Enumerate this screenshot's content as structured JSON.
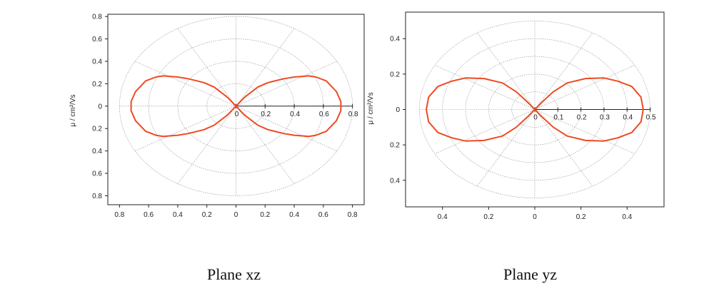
{
  "figure": {
    "caption_left": "Plane xz",
    "caption_right": "Plane yz"
  },
  "colors": {
    "curve": "#ee4a22",
    "grid": "#8c8c8c",
    "axis": "#222222"
  },
  "chart_data": [
    {
      "type": "polar",
      "title": "",
      "caption": "Plane xz",
      "ylabel": "μ / cm²/Vs",
      "series": [
        {
          "points": [
            [
              0.0,
              0.0
            ],
            [
              0.06,
              0.08
            ],
            [
              0.15,
              0.17
            ],
            [
              0.22,
              0.21
            ],
            [
              0.33,
              0.245
            ],
            [
              0.4,
              0.26
            ],
            [
              0.5,
              0.27
            ],
            [
              0.55,
              0.26
            ],
            [
              0.62,
              0.225
            ],
            [
              0.69,
              0.13
            ],
            [
              0.72,
              0.04
            ],
            [
              0.72,
              -0.04
            ],
            [
              0.69,
              -0.13
            ],
            [
              0.62,
              -0.225
            ],
            [
              0.55,
              -0.26
            ],
            [
              0.5,
              -0.27
            ],
            [
              0.4,
              -0.26
            ],
            [
              0.33,
              -0.245
            ],
            [
              0.22,
              -0.21
            ],
            [
              0.15,
              -0.17
            ],
            [
              0.06,
              -0.08
            ],
            [
              0.0,
              0.0
            ],
            [
              -0.06,
              0.08
            ],
            [
              -0.15,
              0.17
            ],
            [
              -0.22,
              0.21
            ],
            [
              -0.33,
              0.245
            ],
            [
              -0.4,
              0.26
            ],
            [
              -0.5,
              0.27
            ],
            [
              -0.55,
              0.26
            ],
            [
              -0.62,
              0.225
            ],
            [
              -0.69,
              0.13
            ],
            [
              -0.72,
              0.04
            ],
            [
              -0.72,
              -0.04
            ],
            [
              -0.69,
              -0.13
            ],
            [
              -0.62,
              -0.225
            ],
            [
              -0.55,
              -0.26
            ],
            [
              -0.5,
              -0.27
            ],
            [
              -0.4,
              -0.26
            ],
            [
              -0.33,
              -0.245
            ],
            [
              -0.22,
              -0.21
            ],
            [
              -0.15,
              -0.17
            ],
            [
              -0.06,
              -0.08
            ],
            [
              0.0,
              0.0
            ]
          ]
        }
      ],
      "xlim": [
        -0.88,
        0.88
      ],
      "ylim": [
        -0.88,
        0.82
      ],
      "x_ticks": [
        {
          "value": -0.8,
          "label": "0.8"
        },
        {
          "value": -0.6,
          "label": "0.6"
        },
        {
          "value": -0.4,
          "label": "0.4"
        },
        {
          "value": -0.2,
          "label": "0.2"
        },
        {
          "value": 0,
          "label": "0"
        },
        {
          "value": 0.2,
          "label": "0.2"
        },
        {
          "value": 0.4,
          "label": "0.4"
        },
        {
          "value": 0.6,
          "label": "0.6"
        },
        {
          "value": 0.8,
          "label": "0.8"
        }
      ],
      "y_ticks": [
        {
          "value": 0.8,
          "label": "0.8"
        },
        {
          "value": 0.6,
          "label": "0.6"
        },
        {
          "value": 0.4,
          "label": "0.4"
        },
        {
          "value": 0.2,
          "label": "0.2"
        },
        {
          "value": 0,
          "label": "0"
        },
        {
          "value": -0.2,
          "label": "0.2"
        },
        {
          "value": -0.4,
          "label": "0.4"
        },
        {
          "value": -0.6,
          "label": "0.6"
        },
        {
          "value": -0.8,
          "label": "0.8"
        }
      ],
      "radial_ticks": [
        {
          "value": 0,
          "label": "0"
        },
        {
          "value": 0.2,
          "label": "0.2"
        },
        {
          "value": 0.4,
          "label": "0.4"
        },
        {
          "value": 0.6,
          "label": "0.6"
        },
        {
          "value": 0.8,
          "label": "0.8"
        }
      ],
      "grid_rings": [
        0.2,
        0.4,
        0.6,
        0.8
      ],
      "grid_spokes_deg": 30,
      "grid": true
    },
    {
      "type": "polar",
      "title": "",
      "caption": "Plane yz",
      "ylabel": "μ / cm²/Vs",
      "series": [
        {
          "points": [
            [
              0.0,
              0.0
            ],
            [
              0.03,
              0.04
            ],
            [
              0.08,
              0.1
            ],
            [
              0.14,
              0.15
            ],
            [
              0.22,
              0.175
            ],
            [
              0.3,
              0.178
            ],
            [
              0.36,
              0.16
            ],
            [
              0.42,
              0.13
            ],
            [
              0.46,
              0.07
            ],
            [
              0.47,
              0.0
            ],
            [
              0.46,
              -0.07
            ],
            [
              0.42,
              -0.13
            ],
            [
              0.36,
              -0.16
            ],
            [
              0.3,
              -0.178
            ],
            [
              0.22,
              -0.175
            ],
            [
              0.14,
              -0.15
            ],
            [
              0.08,
              -0.1
            ],
            [
              0.03,
              -0.04
            ],
            [
              0.0,
              0.0
            ],
            [
              -0.03,
              0.04
            ],
            [
              -0.08,
              0.1
            ],
            [
              -0.14,
              0.15
            ],
            [
              -0.22,
              0.175
            ],
            [
              -0.3,
              0.178
            ],
            [
              -0.36,
              0.16
            ],
            [
              -0.42,
              0.13
            ],
            [
              -0.46,
              0.07
            ],
            [
              -0.47,
              0.0
            ],
            [
              -0.46,
              -0.07
            ],
            [
              -0.42,
              -0.13
            ],
            [
              -0.36,
              -0.16
            ],
            [
              -0.3,
              -0.178
            ],
            [
              -0.22,
              -0.175
            ],
            [
              -0.14,
              -0.15
            ],
            [
              -0.08,
              -0.1
            ],
            [
              -0.03,
              -0.04
            ],
            [
              0.0,
              0.0
            ]
          ]
        }
      ],
      "xlim": [
        -0.56,
        0.56
      ],
      "ylim": [
        -0.55,
        0.55
      ],
      "x_ticks": [
        {
          "value": -0.4,
          "label": "0.4"
        },
        {
          "value": -0.2,
          "label": "0.2"
        },
        {
          "value": 0,
          "label": "0"
        },
        {
          "value": 0.2,
          "label": "0.2"
        },
        {
          "value": 0.4,
          "label": "0.4"
        }
      ],
      "y_ticks": [
        {
          "value": 0.4,
          "label": "0.4"
        },
        {
          "value": 0.2,
          "label": "0.2"
        },
        {
          "value": 0,
          "label": "0"
        },
        {
          "value": -0.2,
          "label": "0.2"
        },
        {
          "value": -0.4,
          "label": "0.4"
        }
      ],
      "radial_ticks": [
        {
          "value": 0,
          "label": "0"
        },
        {
          "value": 0.1,
          "label": "0.1"
        },
        {
          "value": 0.2,
          "label": "0.2"
        },
        {
          "value": 0.3,
          "label": "0.3"
        },
        {
          "value": 0.4,
          "label": "0.4"
        },
        {
          "value": 0.5,
          "label": "0.5"
        }
      ],
      "grid_rings": [
        0.1,
        0.2,
        0.3,
        0.4,
        0.5
      ],
      "grid_spokes_deg": 30,
      "grid": true
    }
  ]
}
